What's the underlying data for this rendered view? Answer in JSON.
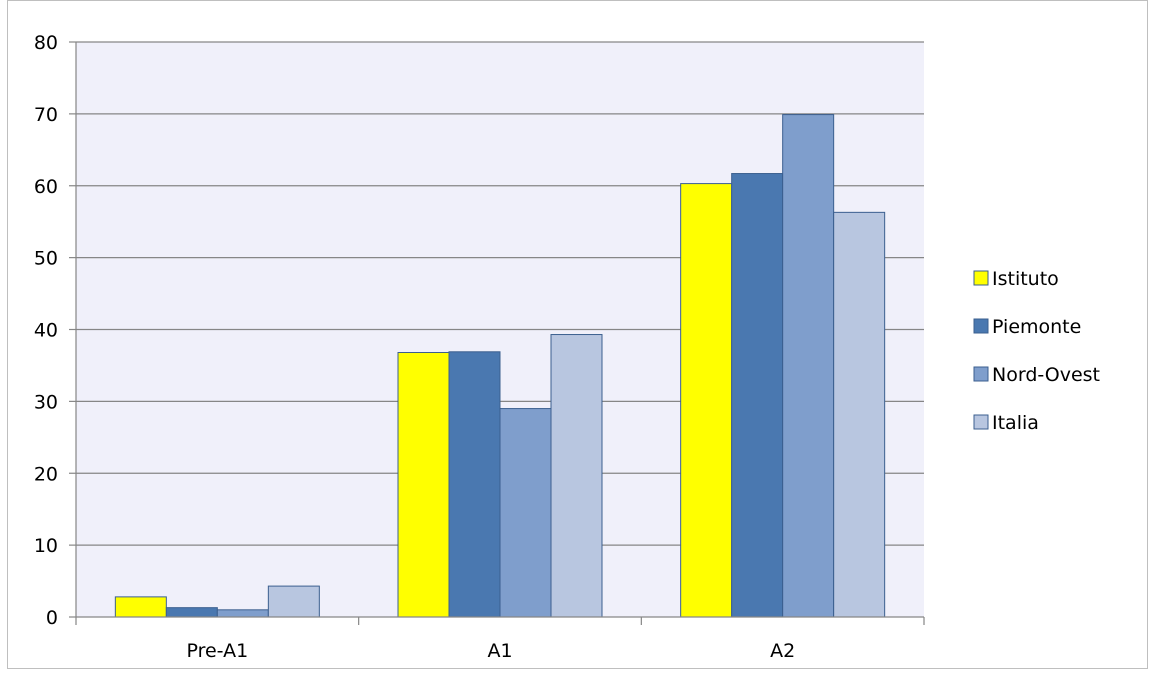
{
  "chart_data": {
    "type": "bar",
    "title": "",
    "xlabel": "",
    "ylabel": "",
    "categories": [
      "Pre-A1",
      "A1",
      "A2"
    ],
    "series": [
      {
        "name": "Istituto",
        "values": [
          2.8,
          36.8,
          60.3
        ],
        "color": "#ffff00"
      },
      {
        "name": "Piemonte",
        "values": [
          1.3,
          36.9,
          61.7
        ],
        "color": "#4a78b0"
      },
      {
        "name": "Nord-Ovest",
        "values": [
          1.0,
          29.0,
          69.9
        ],
        "color": "#7f9ecc"
      },
      {
        "name": "Italia",
        "values": [
          4.3,
          39.3,
          56.3
        ],
        "color": "#b8c6e0"
      }
    ],
    "ylim": [
      0,
      80
    ],
    "yticks": [
      0,
      10,
      20,
      30,
      40,
      50,
      60,
      70,
      80
    ],
    "grid": true,
    "legend_position": "right",
    "colors": {
      "plot_background": "#f0f0fa",
      "gridline": "#868686",
      "axis": "#868686",
      "bar_border": "#3b5f8f",
      "frame": "#bfbfbf"
    }
  }
}
